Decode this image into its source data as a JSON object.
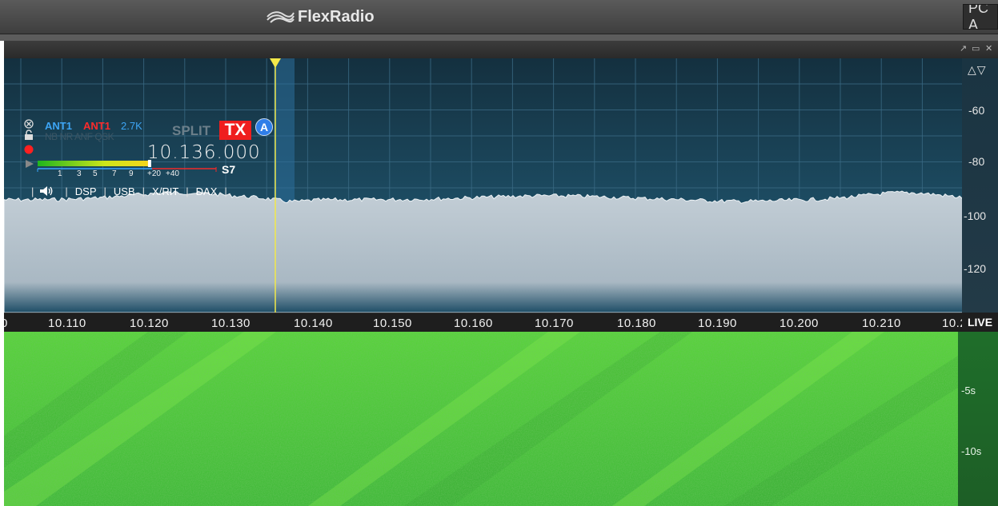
{
  "title_bar": {
    "brand": "FlexRadio",
    "pc_label": "PC A"
  },
  "slice": {
    "rx_antenna": "ANT1",
    "tx_antenna": "ANT1",
    "filter_width": "2.7K",
    "dsp_flags": "NB NR ANF QSK",
    "split_label": "SPLIT",
    "tx_label": "TX",
    "slice_letter": "A",
    "frequency": "10.136.000",
    "s_meter_reading": "S7",
    "s_meter_ticks": [
      "1",
      "3",
      "5",
      "7",
      "9",
      "+20",
      "+40"
    ],
    "s_meter_level": 0.63,
    "tabs": [
      "DSP",
      "USB",
      "X/RIT",
      "DAX"
    ]
  },
  "panadapter": {
    "dbm_labels": [
      "-60",
      "-80",
      "-100",
      "-120"
    ],
    "freq_labels": [
      "0",
      "10.110",
      "10.120",
      "10.130",
      "10.140",
      "10.150",
      "10.160",
      "10.170",
      "10.180",
      "10.190",
      "10.200",
      "10.210",
      "10.2"
    ],
    "live_label": "LIVE",
    "colors": {
      "trace_fill": "#b9c6cf",
      "marker": "#f2e84a",
      "slice_band": "#2c6f9c"
    }
  },
  "waterfall": {
    "time_labels": [
      "-5s",
      "-10s"
    ],
    "colors": {
      "base": "#49c43a"
    }
  }
}
